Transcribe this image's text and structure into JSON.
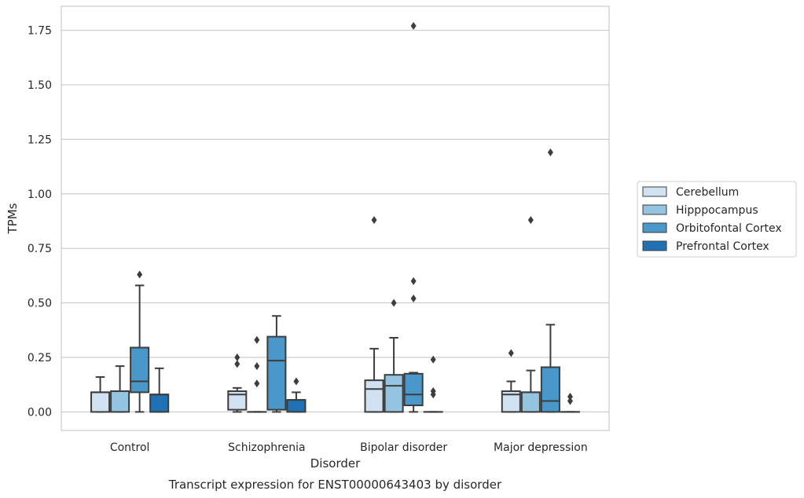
{
  "chart_data": {
    "type": "box",
    "title": "Transcript expression for ENST00000643403 by disorder",
    "xlabel": "Disorder",
    "ylabel": "TPMs",
    "ylim": [
      -0.085,
      1.86
    ],
    "yticks": [
      "0.00",
      "0.25",
      "0.50",
      "0.75",
      "1.00",
      "1.25",
      "1.50",
      "1.75"
    ],
    "grid": true,
    "legend_placement": "right",
    "categories": [
      "Control",
      "Schizophrenia",
      "Bipolar disorder",
      "Major depression"
    ],
    "series": [
      {
        "name": "Cerebellum",
        "color": "#d0e1f2",
        "boxes": [
          {
            "q1": 0.0,
            "median": 0.09,
            "q3": 0.09,
            "whisker_low": 0.0,
            "whisker_high": 0.16,
            "outliers": []
          },
          {
            "q1": 0.01,
            "median": 0.08,
            "q3": 0.095,
            "whisker_low": 0.0,
            "whisker_high": 0.11,
            "outliers": [
              0.22,
              0.25
            ]
          },
          {
            "q1": 0.0,
            "median": 0.105,
            "q3": 0.145,
            "whisker_low": 0.0,
            "whisker_high": 0.29,
            "outliers": [
              0.88
            ]
          },
          {
            "q1": 0.0,
            "median": 0.08,
            "q3": 0.095,
            "whisker_low": 0.0,
            "whisker_high": 0.14,
            "outliers": [
              0.27
            ]
          }
        ]
      },
      {
        "name": "Hipppocampus",
        "color": "#94c4df",
        "boxes": [
          {
            "q1": 0.0,
            "median": 0.095,
            "q3": 0.095,
            "whisker_low": 0.0,
            "whisker_high": 0.21,
            "outliers": []
          },
          {
            "q1": 0.0,
            "median": 0.0,
            "q3": 0.0,
            "whisker_low": 0.0,
            "whisker_high": 0.0,
            "outliers": [
              0.13,
              0.21,
              0.33
            ]
          },
          {
            "q1": 0.0,
            "median": 0.12,
            "q3": 0.17,
            "whisker_low": 0.0,
            "whisker_high": 0.34,
            "outliers": [
              0.5
            ]
          },
          {
            "q1": 0.0,
            "median": 0.09,
            "q3": 0.09,
            "whisker_low": 0.0,
            "whisker_high": 0.19,
            "outliers": [
              0.88
            ]
          }
        ]
      },
      {
        "name": "Orbitofontal Cortex",
        "color": "#4a98c9",
        "boxes": [
          {
            "q1": 0.09,
            "median": 0.14,
            "q3": 0.295,
            "whisker_low": 0.0,
            "whisker_high": 0.58,
            "outliers": [
              0.63
            ]
          },
          {
            "q1": 0.01,
            "median": 0.235,
            "q3": 0.345,
            "whisker_low": 0.0,
            "whisker_high": 0.44,
            "outliers": []
          },
          {
            "q1": 0.03,
            "median": 0.08,
            "q3": 0.175,
            "whisker_low": 0.0,
            "whisker_high": 0.18,
            "outliers": [
              0.52,
              0.6,
              1.77
            ]
          },
          {
            "q1": 0.0,
            "median": 0.05,
            "q3": 0.205,
            "whisker_low": 0.0,
            "whisker_high": 0.4,
            "outliers": [
              1.19
            ]
          }
        ]
      },
      {
        "name": "Prefrontal Cortex",
        "color": "#2070b4",
        "boxes": [
          {
            "q1": 0.0,
            "median": 0.08,
            "q3": 0.08,
            "whisker_low": 0.0,
            "whisker_high": 0.2,
            "outliers": []
          },
          {
            "q1": 0.0,
            "median": 0.055,
            "q3": 0.055,
            "whisker_low": 0.0,
            "whisker_high": 0.09,
            "outliers": [
              0.14
            ]
          },
          {
            "q1": 0.0,
            "median": 0.0,
            "q3": 0.0,
            "whisker_low": 0.0,
            "whisker_high": 0.0,
            "outliers": [
              0.08,
              0.095,
              0.24
            ]
          },
          {
            "q1": 0.0,
            "median": 0.0,
            "q3": 0.0,
            "whisker_low": 0.0,
            "whisker_high": 0.0,
            "outliers": [
              0.05,
              0.07
            ]
          }
        ]
      }
    ]
  }
}
